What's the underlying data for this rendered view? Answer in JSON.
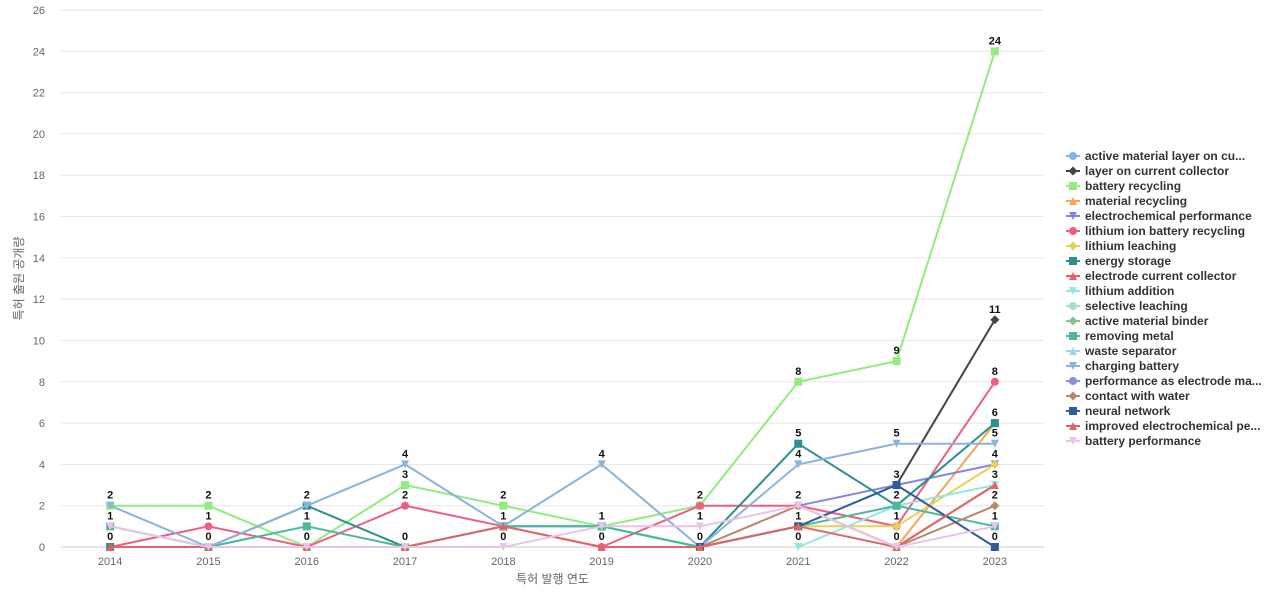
{
  "chart_data": {
    "type": "line",
    "title": "",
    "xlabel": "특허 발행 연도",
    "ylabel": "특허 출원 공개량",
    "x": [
      "2014",
      "2015",
      "2016",
      "2017",
      "2018",
      "2019",
      "2020",
      "2021",
      "2022",
      "2023"
    ],
    "ylim": [
      0,
      26
    ],
    "yticks": [
      0,
      2,
      4,
      6,
      8,
      10,
      12,
      14,
      16,
      18,
      20,
      22,
      24,
      26
    ],
    "grid": "horizontal",
    "legend_position": "right",
    "series": [
      {
        "name": "active material layer on cu...",
        "color": "#7cb5ec",
        "marker": "circle",
        "values": [
          null,
          null,
          null,
          null,
          null,
          null,
          null,
          null,
          null,
          null
        ]
      },
      {
        "name": "layer on current collector",
        "color": "#434348",
        "marker": "diamond",
        "values": [
          null,
          null,
          null,
          null,
          null,
          null,
          null,
          null,
          3,
          11
        ]
      },
      {
        "name": "battery recycling",
        "color": "#90ed7d",
        "marker": "square",
        "values": [
          2,
          2,
          0,
          3,
          2,
          1,
          2,
          8,
          9,
          24
        ]
      },
      {
        "name": "material recycling",
        "color": "#f7a35c",
        "marker": "triangle",
        "values": [
          null,
          null,
          null,
          null,
          null,
          null,
          null,
          null,
          0,
          6
        ]
      },
      {
        "name": "electrochemical performance",
        "color": "#8085e9",
        "marker": "triangle-down",
        "values": [
          null,
          null,
          null,
          null,
          null,
          null,
          null,
          2,
          3,
          4
        ]
      },
      {
        "name": "lithium ion battery recycling",
        "color": "#f15c80",
        "marker": "circle",
        "values": [
          0,
          1,
          0,
          2,
          1,
          0,
          2,
          2,
          1,
          8
        ]
      },
      {
        "name": "lithium leaching",
        "color": "#e4d354",
        "marker": "diamond",
        "values": [
          null,
          null,
          null,
          null,
          null,
          null,
          null,
          1,
          1,
          4
        ]
      },
      {
        "name": "energy storage",
        "color": "#2b908f",
        "marker": "square",
        "values": [
          0,
          0,
          2,
          0,
          1,
          1,
          0,
          5,
          2,
          6
        ]
      },
      {
        "name": "electrode current collector",
        "color": "#f45b5b",
        "marker": "triangle",
        "values": [
          null,
          null,
          null,
          null,
          null,
          null,
          null,
          null,
          0,
          3
        ]
      },
      {
        "name": "lithium addition",
        "color": "#91e8e1",
        "marker": "triangle-down",
        "values": [
          null,
          null,
          null,
          null,
          null,
          null,
          null,
          0,
          2,
          3
        ]
      },
      {
        "name": "selective leaching",
        "color": "#a8dcc8",
        "marker": "circle",
        "values": [
          null,
          null,
          null,
          null,
          null,
          null,
          null,
          null,
          null,
          null
        ]
      },
      {
        "name": "active material binder",
        "color": "#86c38a",
        "marker": "diamond",
        "values": [
          null,
          null,
          null,
          null,
          null,
          null,
          null,
          null,
          null,
          null
        ]
      },
      {
        "name": "removing metal",
        "color": "#4cb89e",
        "marker": "square",
        "values": [
          1,
          0,
          1,
          0,
          1,
          1,
          0,
          1,
          2,
          1
        ]
      },
      {
        "name": "waste separator",
        "color": "#98d8e8",
        "marker": "triangle",
        "values": [
          null,
          null,
          null,
          null,
          null,
          null,
          null,
          null,
          null,
          null
        ]
      },
      {
        "name": "charging battery",
        "color": "#8ab4dc",
        "marker": "triangle-down",
        "values": [
          2,
          0,
          2,
          4,
          1,
          4,
          0,
          4,
          5,
          5
        ]
      },
      {
        "name": "performance as electrode ma...",
        "color": "#8a93d8",
        "marker": "circle",
        "values": [
          null,
          null,
          null,
          null,
          null,
          null,
          null,
          null,
          null,
          null
        ]
      },
      {
        "name": "contact with water",
        "color": "#b8876a",
        "marker": "diamond",
        "values": [
          null,
          null,
          null,
          null,
          null,
          null,
          0,
          2,
          0,
          2
        ]
      },
      {
        "name": "neural network",
        "color": "#2e5b9a",
        "marker": "square",
        "values": [
          null,
          null,
          null,
          null,
          null,
          null,
          0,
          1,
          3,
          0
        ]
      },
      {
        "name": "improved electrochemical pe...",
        "color": "#e06666",
        "marker": "triangle",
        "values": [
          0,
          0,
          0,
          0,
          1,
          0,
          0,
          1,
          0,
          3
        ]
      },
      {
        "name": "battery performance",
        "color": "#e8c4e8",
        "marker": "triangle-down",
        "values": [
          1,
          0,
          0,
          0,
          0,
          1,
          1,
          2,
          0,
          1
        ]
      }
    ],
    "data_labels": [
      {
        "x": "2014",
        "y": 2,
        "text": "2"
      },
      {
        "x": "2014",
        "y": 1,
        "text": "1"
      },
      {
        "x": "2014",
        "y": 0,
        "text": "0"
      },
      {
        "x": "2015",
        "y": 2,
        "text": "2"
      },
      {
        "x": "2015",
        "y": 1,
        "text": "1"
      },
      {
        "x": "2015",
        "y": 0,
        "text": "0"
      },
      {
        "x": "2016",
        "y": 2,
        "text": "2"
      },
      {
        "x": "2016",
        "y": 1,
        "text": "1"
      },
      {
        "x": "2016",
        "y": 0,
        "text": "0"
      },
      {
        "x": "2017",
        "y": 4,
        "text": "4"
      },
      {
        "x": "2017",
        "y": 3,
        "text": "3"
      },
      {
        "x": "2017",
        "y": 2,
        "text": "2"
      },
      {
        "x": "2017",
        "y": 0,
        "text": "0"
      },
      {
        "x": "2018",
        "y": 2,
        "text": "2"
      },
      {
        "x": "2018",
        "y": 1,
        "text": "1"
      },
      {
        "x": "2018",
        "y": 0,
        "text": "0"
      },
      {
        "x": "2019",
        "y": 4,
        "text": "4"
      },
      {
        "x": "2019",
        "y": 1,
        "text": "1"
      },
      {
        "x": "2019",
        "y": 0,
        "text": "0"
      },
      {
        "x": "2020",
        "y": 2,
        "text": "2"
      },
      {
        "x": "2020",
        "y": 1,
        "text": "1"
      },
      {
        "x": "2020",
        "y": 0,
        "text": "0"
      },
      {
        "x": "2021",
        "y": 8,
        "text": "8"
      },
      {
        "x": "2021",
        "y": 5,
        "text": "5"
      },
      {
        "x": "2021",
        "y": 4,
        "text": "4"
      },
      {
        "x": "2021",
        "y": 2,
        "text": "2"
      },
      {
        "x": "2021",
        "y": 1,
        "text": "1"
      },
      {
        "x": "2021",
        "y": 0,
        "text": "0"
      },
      {
        "x": "2022",
        "y": 9,
        "text": "9"
      },
      {
        "x": "2022",
        "y": 5,
        "text": "5"
      },
      {
        "x": "2022",
        "y": 3,
        "text": "3"
      },
      {
        "x": "2022",
        "y": 2,
        "text": "2"
      },
      {
        "x": "2022",
        "y": 1,
        "text": "1"
      },
      {
        "x": "2022",
        "y": 0,
        "text": "0"
      },
      {
        "x": "2023",
        "y": 24,
        "text": "24"
      },
      {
        "x": "2023",
        "y": 11,
        "text": "11"
      },
      {
        "x": "2023",
        "y": 8,
        "text": "8"
      },
      {
        "x": "2023",
        "y": 6,
        "text": "6"
      },
      {
        "x": "2023",
        "y": 5,
        "text": "5"
      },
      {
        "x": "2023",
        "y": 4,
        "text": "4"
      },
      {
        "x": "2023",
        "y": 3,
        "text": "3"
      },
      {
        "x": "2023",
        "y": 2,
        "text": "2"
      },
      {
        "x": "2023",
        "y": 1,
        "text": "1"
      },
      {
        "x": "2023",
        "y": 0,
        "text": "0"
      }
    ]
  }
}
